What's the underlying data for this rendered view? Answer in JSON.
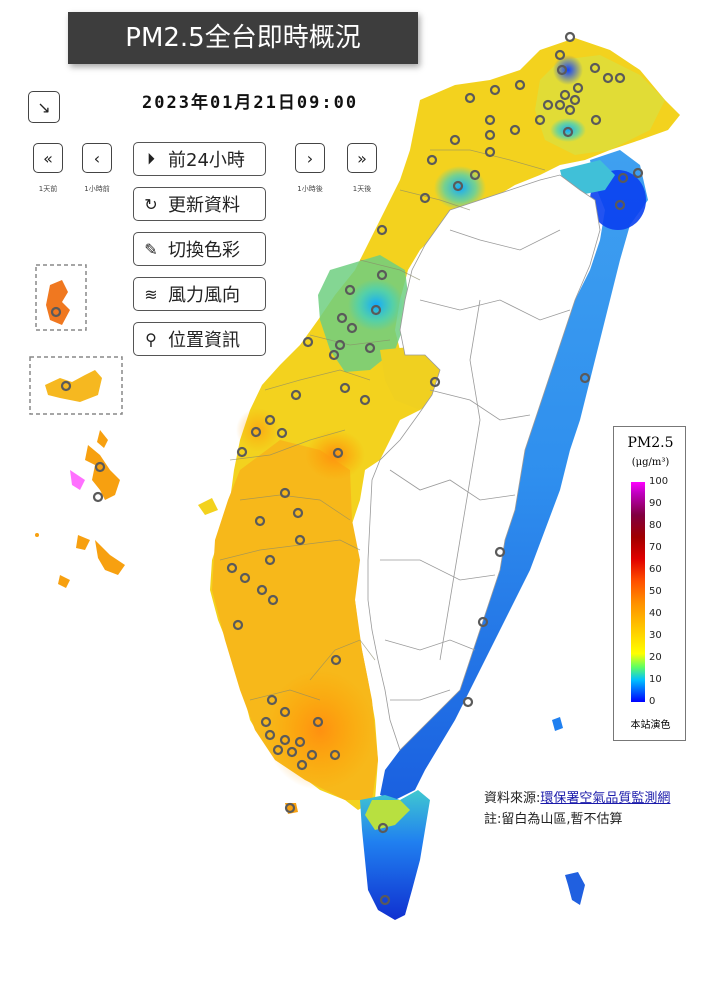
{
  "header": {
    "title": "PM2.5全台即時概況",
    "datetime": "2023年01月21日09:00"
  },
  "nav": {
    "collapse_icon": "arrow-down-right-icon",
    "day_back_label": "1天前",
    "hour_back_label": "1小時前",
    "hour_forward_label": "1小時後",
    "day_forward_label": "1天後"
  },
  "menu": [
    {
      "label": "前24小時",
      "icon": "play-circle-icon",
      "glyph": "⏵"
    },
    {
      "label": "更新資料",
      "icon": "refresh-icon",
      "glyph": "↻"
    },
    {
      "label": "切換色彩",
      "icon": "paint-brush-icon",
      "glyph": "✎"
    },
    {
      "label": "風力風向",
      "icon": "wind-icon",
      "glyph": "≋"
    },
    {
      "label": "位置資訊",
      "icon": "location-pin-icon",
      "glyph": "⚲"
    }
  ],
  "legend": {
    "title": "PM2.5",
    "unit": "(μg/m³)",
    "ticks": [
      "100",
      "90",
      "80",
      "70",
      "60",
      "50",
      "40",
      "30",
      "20",
      "10",
      "0"
    ],
    "footer": "本站演色"
  },
  "source": {
    "label": "資料來源:",
    "link_text": "環保署空氣品質監測網"
  },
  "note": "註:留白為山區,暫不估算",
  "colors": {
    "title_bg": "#3d3d3d",
    "link": "#1a1aaa"
  }
}
